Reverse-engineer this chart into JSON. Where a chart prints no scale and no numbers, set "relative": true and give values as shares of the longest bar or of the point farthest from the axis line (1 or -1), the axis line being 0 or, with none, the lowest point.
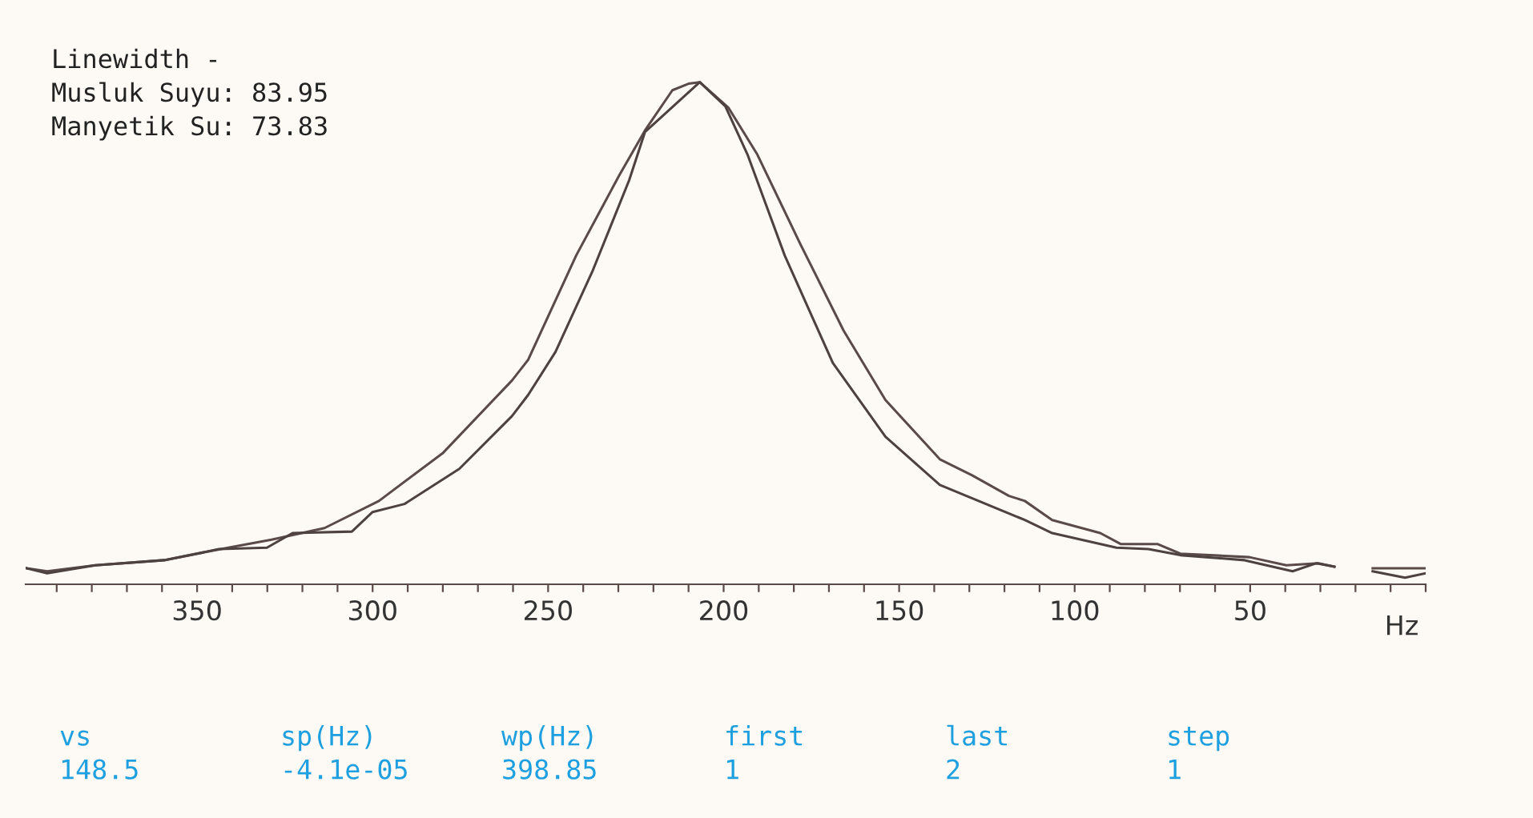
{
  "chart_data": {
    "type": "line",
    "relative": true,
    "annotations": [
      "Linewidth -",
      "Musluk Suyu: 83.95",
      "Manyetik Su: 73.83",
      "vs",
      "sp(Hz)",
      "wp(Hz)",
      "first",
      "last",
      "step",
      "148.5",
      "-4.1e-05",
      "398.85",
      "1",
      "2",
      "1"
    ],
    "xlabel": "Hz",
    "xlim": [
      398.85,
      0
    ],
    "xticks": [
      {
        "value": 390,
        "label": null
      },
      {
        "value": 380,
        "label": null
      },
      {
        "value": 370,
        "label": null
      },
      {
        "value": 360,
        "label": null
      },
      350,
      {
        "value": 340,
        "label": null
      },
      {
        "value": 330,
        "label": null
      },
      {
        "value": 320,
        "label": null
      },
      {
        "value": 310,
        "label": null
      },
      300,
      {
        "value": 290,
        "label": null
      },
      {
        "value": 280,
        "label": null
      },
      {
        "value": 270,
        "label": null
      },
      {
        "value": 260,
        "label": null
      },
      250,
      {
        "value": 240,
        "label": null
      },
      {
        "value": 230,
        "label": null
      },
      {
        "value": 220,
        "label": null
      },
      {
        "value": 210,
        "label": null
      },
      200,
      {
        "value": 190,
        "label": null
      },
      {
        "value": 180,
        "label": null
      },
      {
        "value": 170,
        "label": null
      },
      {
        "value": 160,
        "label": null
      },
      150,
      {
        "value": 140,
        "label": null
      },
      {
        "value": 130,
        "label": null
      },
      {
        "value": 120,
        "label": null
      },
      {
        "value": 110,
        "label": null
      },
      100,
      {
        "value": 90,
        "label": null
      },
      {
        "value": 80,
        "label": null
      },
      {
        "value": 70,
        "label": null
      },
      {
        "value": 60,
        "label": null
      },
      50,
      {
        "value": 40,
        "label": null
      },
      {
        "value": 30,
        "label": null
      },
      {
        "value": 20,
        "label": null
      },
      {
        "value": 10,
        "label": null
      },
      {
        "value": 0,
        "label": null
      }
    ],
    "grid": false,
    "marker": "none",
    "line_style": "solid",
    "series": [
      {
        "color": "#5a4a48",
        "x": [
          398.6,
          392.7,
          379.0,
          359.4,
          341.1,
          328.8,
          313.7,
          298.2,
          279.9,
          260.3,
          255.7,
          242.0,
          229.7,
          222.4,
          214.6,
          210.0,
          206.8,
          198.6,
          190.4,
          178.1,
          165.8,
          153.9,
          138.4,
          129.2,
          118.7,
          114.2,
          106.4,
          92.7,
          86.8,
          76.3,
          69.9,
          50.2,
          39.7,
          30.6,
          26.0,
          20,
          15.1,
          5.9,
          0
        ],
        "values": [
          0.032,
          0.026,
          0.038,
          0.048,
          0.073,
          0.089,
          0.112,
          0.166,
          0.262,
          0.406,
          0.447,
          0.655,
          0.815,
          0.904,
          0.984,
          0.997,
          1.0,
          0.949,
          0.856,
          0.677,
          0.505,
          0.367,
          0.249,
          0.217,
          0.176,
          0.166,
          0.128,
          0.102,
          0.08,
          0.08,
          0.061,
          0.054,
          0.038,
          0.042,
          0.035,
          null,
          0.032,
          0.032,
          0.032
        ]
      },
      {
        "color": "#4e4240",
        "x": [
          398.6,
          392.7,
          379.0,
          359.4,
          343.8,
          330.1,
          322.8,
          305.9,
          300.0,
          290.9,
          275.3,
          260.3,
          255.7,
          247.9,
          237.4,
          226.9,
          222.4,
          206.8,
          199.5,
          193.2,
          182.6,
          168.9,
          153.9,
          138.4,
          114.2,
          106.4,
          88.1,
          79.0,
          69.9,
          51.6,
          37.9,
          31.1,
          26.0,
          20,
          15.1,
          5.9,
          0
        ],
        "values": [
          0.032,
          0.022,
          0.038,
          0.048,
          0.07,
          0.073,
          0.102,
          0.105,
          0.144,
          0.16,
          0.23,
          0.335,
          0.377,
          0.463,
          0.623,
          0.805,
          0.901,
          1.0,
          0.952,
          0.856,
          0.655,
          0.441,
          0.294,
          0.198,
          0.128,
          0.102,
          0.073,
          0.07,
          0.058,
          0.048,
          0.026,
          0.042,
          0.035,
          null,
          0.026,
          0.013,
          0.022
        ]
      }
    ]
  }
}
